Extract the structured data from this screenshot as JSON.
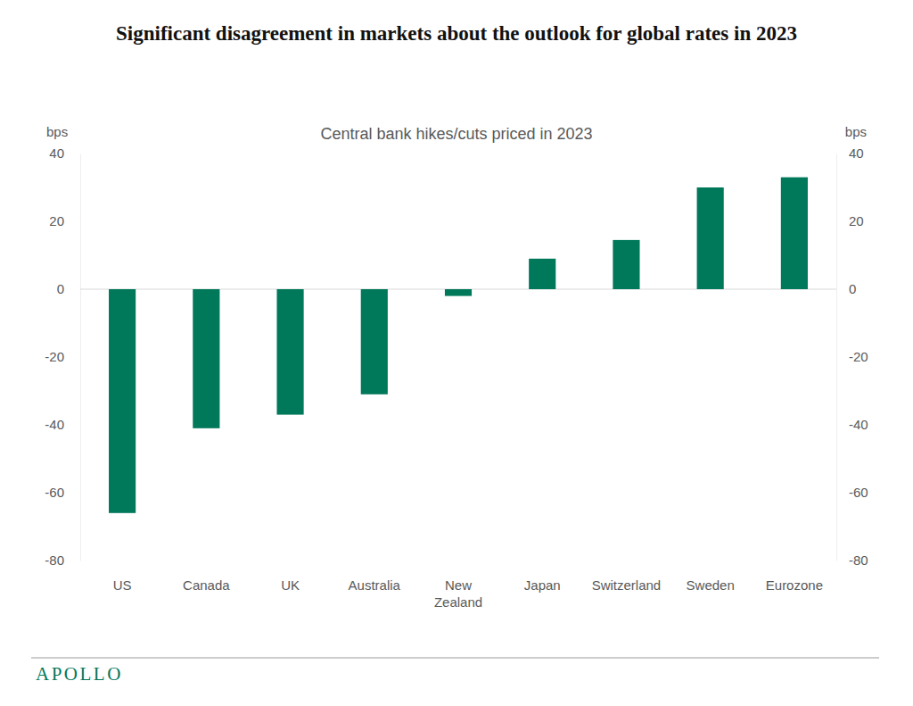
{
  "chart_data": {
    "type": "bar",
    "title": "Significant disagreement in markets about the outlook for global rates in 2023",
    "subtitle": "Central bank hikes/cuts priced in 2023",
    "y_label": "bps",
    "footer": "APOLLO",
    "categories": [
      "US",
      "Canada",
      "UK",
      "Australia",
      "New Zealand",
      "Japan",
      "Switzerland",
      "Sweden",
      "Eurozone"
    ],
    "values": [
      -66,
      -41,
      -37,
      -31,
      -2,
      9,
      14.5,
      30,
      33
    ],
    "color": "#00785a",
    "ylim": [
      -80,
      40
    ],
    "yticks": [
      40,
      20,
      0,
      -20,
      -40,
      -60,
      -80
    ],
    "grid": false
  }
}
